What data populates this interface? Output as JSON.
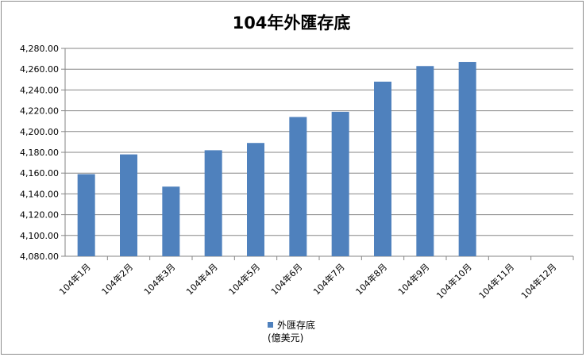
{
  "chart_data": {
    "type": "bar",
    "title": "104年外匯存底",
    "categories": [
      "104年1月",
      "104年2月",
      "104年3月",
      "104年4月",
      "104年5月",
      "104年6月",
      "104年7月",
      "104年8月",
      "104年9月",
      "104年10月",
      "104年11月",
      "104年12月"
    ],
    "series": [
      {
        "name": "外匯存底",
        "unit": "(億美元)",
        "color": "#4f81bd",
        "values": [
          4159,
          4178,
          4147,
          4182,
          4189,
          4214,
          4219,
          4248,
          4263,
          4267,
          null,
          null
        ]
      }
    ],
    "yticks": [
      "4,080.00",
      "4,100.00",
      "4,120.00",
      "4,140.00",
      "4,160.00",
      "4,180.00",
      "4,200.00",
      "4,220.00",
      "4,240.00",
      "4,260.00",
      "4,280.00"
    ],
    "ylim": [
      4080,
      4280
    ],
    "grid": true,
    "legend_position": "bottom"
  }
}
